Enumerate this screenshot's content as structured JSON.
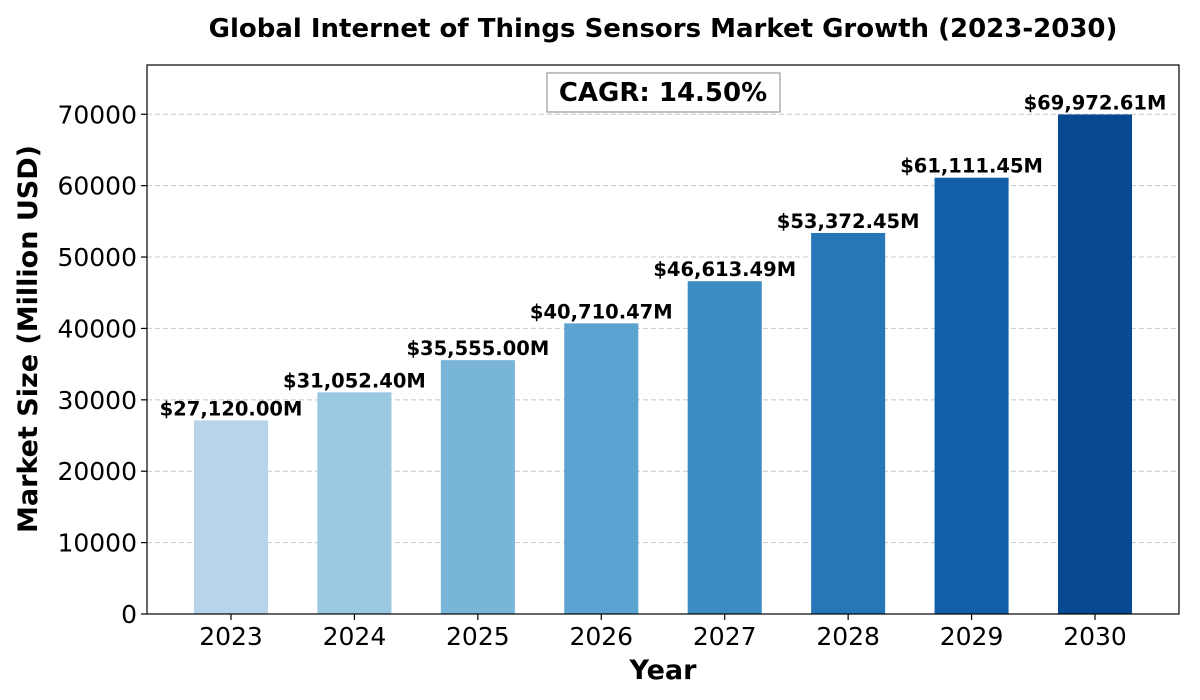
{
  "chart_data": {
    "type": "bar",
    "title": "Global Internet of Things Sensors Market Growth (2023-2030)",
    "xlabel": "Year",
    "ylabel": "Market Size (Million USD)",
    "categories": [
      "2023",
      "2024",
      "2025",
      "2026",
      "2027",
      "2028",
      "2029",
      "2030"
    ],
    "values": [
      27120.0,
      31052.4,
      35555.0,
      40710.47,
      46613.49,
      53372.45,
      61111.45,
      69972.61
    ],
    "data_labels": [
      "$27,120.00M",
      "$31,052.40M",
      "$35,555.00M",
      "$40,710.47M",
      "$46,613.49M",
      "$53,372.45M",
      "$61,111.45M",
      "$69,972.61M"
    ],
    "colors": [
      "#b7d4ea",
      "#9ac8e0",
      "#78b5d9",
      "#5ba3d0",
      "#3c8bc3",
      "#2676b8",
      "#135fa8",
      "#084a91"
    ],
    "ylim": [
      0,
      76900
    ],
    "yticks": [
      0,
      10000,
      20000,
      30000,
      40000,
      50000,
      60000,
      70000
    ],
    "ytick_labels": [
      "0",
      "10000",
      "20000",
      "30000",
      "40000",
      "50000",
      "60000",
      "70000"
    ],
    "grid": true,
    "annotation": "CAGR: 14.50%"
  }
}
